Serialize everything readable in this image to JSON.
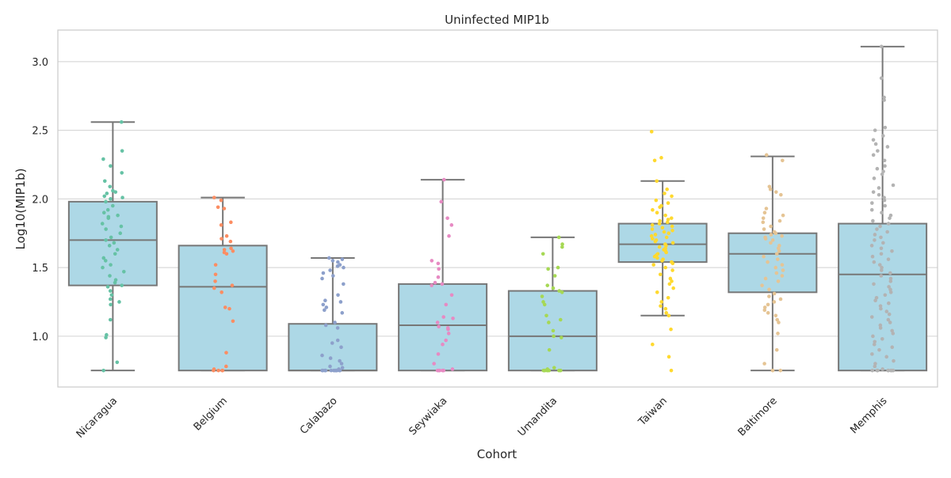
{
  "chart_data": {
    "type": "box",
    "title": "Uninfected MIP1b",
    "xlabel": "Cohort",
    "ylabel": "Log10(MIP1b)",
    "categories": [
      "Nicaragua",
      "Belgium",
      "Calabazo",
      "Seywiaka",
      "Umandita",
      "Taiwan",
      "Baltimore",
      "Memphis"
    ],
    "y_ticks": [
      1.0,
      1.5,
      2.0,
      2.5,
      3.0
    ],
    "y_tick_labels": [
      "1.0",
      "1.5",
      "2.0",
      "2.5",
      "3.0"
    ],
    "ylim": [
      0.63,
      3.23
    ],
    "grid": "horizontal",
    "box_color": "#add8e6",
    "line_color": "#777777",
    "boxes": [
      {
        "category": "Nicaragua",
        "whisker_low": 0.75,
        "q1": 1.37,
        "median": 1.7,
        "q3": 1.98,
        "whisker_high": 2.56
      },
      {
        "category": "Belgium",
        "whisker_low": 0.75,
        "q1": 0.75,
        "median": 1.36,
        "q3": 1.66,
        "whisker_high": 2.01
      },
      {
        "category": "Calabazo",
        "whisker_low": 0.75,
        "q1": 0.75,
        "median": 0.75,
        "q3": 1.09,
        "whisker_high": 1.57
      },
      {
        "category": "Seywiaka",
        "whisker_low": 0.75,
        "q1": 0.75,
        "median": 1.08,
        "q3": 1.38,
        "whisker_high": 2.14
      },
      {
        "category": "Umandita",
        "whisker_low": 0.75,
        "q1": 0.75,
        "median": 1.0,
        "q3": 1.33,
        "whisker_high": 1.72
      },
      {
        "category": "Taiwan",
        "whisker_low": 1.15,
        "q1": 1.54,
        "median": 1.67,
        "q3": 1.82,
        "whisker_high": 2.13
      },
      {
        "category": "Baltimore",
        "whisker_low": 0.75,
        "q1": 1.32,
        "median": 1.6,
        "q3": 1.75,
        "whisker_high": 2.31
      },
      {
        "category": "Memphis",
        "whisker_low": 0.75,
        "q1": 0.75,
        "median": 1.45,
        "q3": 1.82,
        "whisker_high": 3.11
      }
    ],
    "points": [
      {
        "category": "Nicaragua",
        "color": "#66c2a5",
        "values": [
          2.56,
          2.35,
          2.29,
          2.24,
          2.19,
          2.13,
          2.09,
          2.06,
          2.05,
          2.04,
          2.02,
          2.01,
          2.0,
          1.98,
          1.95,
          1.92,
          1.9,
          1.88,
          1.87,
          1.86,
          1.82,
          1.8,
          1.78,
          1.75,
          1.72,
          1.7,
          1.68,
          1.66,
          1.63,
          1.6,
          1.57,
          1.55,
          1.52,
          1.5,
          1.47,
          1.44,
          1.41,
          1.39,
          1.37,
          1.36,
          1.33,
          1.3,
          1.27,
          1.25,
          1.23,
          1.12,
          1.01,
          0.99,
          0.81,
          0.75
        ]
      },
      {
        "category": "Belgium",
        "color": "#fc8d62",
        "values": [
          2.01,
          1.99,
          1.94,
          1.93,
          1.83,
          1.81,
          1.73,
          1.71,
          1.69,
          1.64,
          1.63,
          1.62,
          1.61,
          1.6,
          1.52,
          1.45,
          1.4,
          1.37,
          1.35,
          1.32,
          1.21,
          1.2,
          1.11,
          0.88,
          0.78,
          0.76,
          0.75,
          0.75,
          0.75,
          0.75
        ]
      },
      {
        "category": "Calabazo",
        "color": "#8da0cb",
        "values": [
          1.57,
          1.56,
          1.55,
          1.54,
          1.52,
          1.51,
          1.5,
          1.48,
          1.46,
          1.44,
          1.42,
          1.38,
          1.3,
          1.26,
          1.25,
          1.23,
          1.21,
          1.19,
          1.17,
          1.1,
          1.08,
          1.06,
          0.97,
          0.95,
          0.92,
          0.86,
          0.84,
          0.82,
          0.8,
          0.78,
          0.77,
          0.76,
          0.75,
          0.75,
          0.75,
          0.75,
          0.75,
          0.75,
          0.75,
          0.75,
          0.75,
          0.75,
          0.75,
          0.75,
          0.75,
          0.75
        ]
      },
      {
        "category": "Seywiaka",
        "color": "#e78ac3",
        "values": [
          2.14,
          1.98,
          1.86,
          1.81,
          1.73,
          1.55,
          1.53,
          1.49,
          1.43,
          1.39,
          1.38,
          1.37,
          1.3,
          1.23,
          1.14,
          1.13,
          1.1,
          1.07,
          1.06,
          1.05,
          1.02,
          0.97,
          0.94,
          0.87,
          0.8,
          0.76,
          0.75,
          0.75,
          0.75,
          0.75,
          0.75
        ]
      },
      {
        "category": "Umandita",
        "color": "#a6d854",
        "values": [
          1.72,
          1.67,
          1.65,
          1.6,
          1.5,
          1.49,
          1.44,
          1.37,
          1.35,
          1.33,
          1.32,
          1.29,
          1.25,
          1.23,
          1.15,
          1.12,
          1.1,
          1.04,
          1.0,
          0.99,
          0.9,
          0.77,
          0.76,
          0.75,
          0.75,
          0.75,
          0.75,
          0.75,
          0.75,
          0.75,
          0.75
        ]
      },
      {
        "category": "Taiwan",
        "color": "#ffd92f",
        "values": [
          2.49,
          2.3,
          2.28,
          2.13,
          2.07,
          2.04,
          2.02,
          1.99,
          1.97,
          1.95,
          1.94,
          1.92,
          1.9,
          1.88,
          1.86,
          1.85,
          1.84,
          1.83,
          1.82,
          1.81,
          1.8,
          1.79,
          1.78,
          1.77,
          1.76,
          1.75,
          1.74,
          1.73,
          1.72,
          1.71,
          1.7,
          1.69,
          1.68,
          1.67,
          1.66,
          1.65,
          1.64,
          1.63,
          1.62,
          1.61,
          1.6,
          1.59,
          1.58,
          1.57,
          1.56,
          1.55,
          1.54,
          1.53,
          1.52,
          1.5,
          1.48,
          1.45,
          1.42,
          1.4,
          1.38,
          1.35,
          1.32,
          1.28,
          1.25,
          1.22,
          1.2,
          1.17,
          1.15,
          1.05,
          0.94,
          0.85,
          0.75
        ]
      },
      {
        "category": "Baltimore",
        "color": "#e5c494",
        "values": [
          2.32,
          2.28,
          2.09,
          2.07,
          2.05,
          2.03,
          1.93,
          1.9,
          1.88,
          1.86,
          1.84,
          1.83,
          1.8,
          1.78,
          1.76,
          1.75,
          1.74,
          1.73,
          1.72,
          1.71,
          1.7,
          1.68,
          1.66,
          1.64,
          1.62,
          1.6,
          1.58,
          1.56,
          1.54,
          1.52,
          1.5,
          1.48,
          1.46,
          1.44,
          1.42,
          1.4,
          1.37,
          1.34,
          1.31,
          1.29,
          1.27,
          1.25,
          1.23,
          1.21,
          1.19,
          1.17,
          1.15,
          1.12,
          1.1,
          1.02,
          0.9,
          0.8,
          0.75,
          0.75
        ]
      },
      {
        "category": "Memphis",
        "color": "#b3b3b3",
        "values": [
          3.11,
          2.88,
          2.74,
          2.72,
          2.52,
          2.5,
          2.46,
          2.43,
          2.4,
          2.38,
          2.35,
          2.32,
          2.28,
          2.24,
          2.22,
          2.2,
          2.18,
          2.15,
          2.1,
          2.08,
          2.05,
          2.03,
          2.01,
          1.99,
          1.97,
          1.95,
          1.92,
          1.9,
          1.88,
          1.86,
          1.84,
          1.82,
          1.8,
          1.78,
          1.76,
          1.74,
          1.72,
          1.7,
          1.68,
          1.66,
          1.64,
          1.62,
          1.6,
          1.58,
          1.56,
          1.54,
          1.52,
          1.5,
          1.48,
          1.46,
          1.44,
          1.42,
          1.4,
          1.38,
          1.36,
          1.34,
          1.32,
          1.3,
          1.28,
          1.26,
          1.24,
          1.22,
          1.2,
          1.18,
          1.16,
          1.14,
          1.12,
          1.1,
          1.08,
          1.06,
          1.04,
          1.02,
          1.0,
          0.98,
          0.96,
          0.94,
          0.92,
          0.9,
          0.87,
          0.85,
          0.82,
          0.8,
          0.78,
          0.76,
          0.75,
          0.75,
          0.75,
          0.75,
          0.75,
          0.75,
          0.75,
          0.75
        ]
      }
    ]
  }
}
